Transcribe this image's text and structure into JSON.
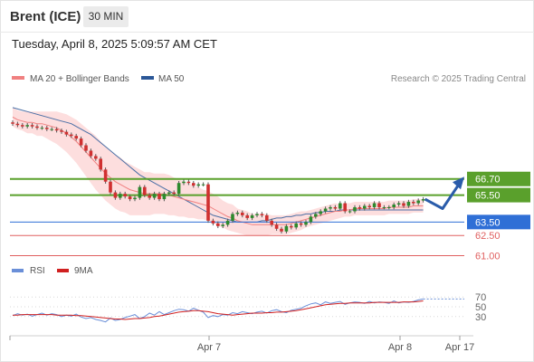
{
  "header": {
    "instrument": "Brent (ICE)",
    "timeframe": "30 MIN",
    "timestamp": "Tuesday, April 8, 2025 5:09:57 AM CET"
  },
  "colors": {
    "price_up": "#2d8a2d",
    "price_down": "#d03030",
    "ma20": "#f08080",
    "bollinger_fill": "#fcd3d3",
    "ma50": "#4a6fa5",
    "resistance": "#5aa02c",
    "pivot": "#2f6fd6",
    "support": "#e06060",
    "arrow": "#2a5caa",
    "rsi": "#6a8fd8",
    "rsi_ma": "#d02020"
  },
  "chart_data": [
    {
      "type": "candlestick",
      "legend": [
        {
          "label": "MA 20 + Bollinger Bands",
          "color": "#f08080"
        },
        {
          "label": "MA 50",
          "color": "#2b5797"
        }
      ],
      "credit": "Research © 2025 Trading Central",
      "x_ticks": [
        "Apr 7",
        "Apr 8",
        "Apr 17"
      ],
      "ylim": [
        60.5,
        73.0
      ],
      "levels": [
        {
          "value": 66.7,
          "label": "66.70",
          "role": "resistance",
          "color": "#5aa02c"
        },
        {
          "value": 65.5,
          "label": "65.50",
          "role": "resistance",
          "color": "#5aa02c"
        },
        {
          "value": 63.5,
          "label": "63.50",
          "role": "pivot",
          "color": "#2f6fd6"
        },
        {
          "value": 62.5,
          "label": "62.50",
          "role": "support",
          "color": "#e06060"
        },
        {
          "value": 61.0,
          "label": "61.00",
          "role": "support",
          "color": "#e06060"
        }
      ],
      "close": [
        70.8,
        70.7,
        70.6,
        70.7,
        70.6,
        70.5,
        70.5,
        70.4,
        70.4,
        70.3,
        70.2,
        70.0,
        69.9,
        69.7,
        69.2,
        68.8,
        68.4,
        68.2,
        67.4,
        66.5,
        65.7,
        65.3,
        65.6,
        65.4,
        65.2,
        65.3,
        66.1,
        65.5,
        65.3,
        65.6,
        65.2,
        65.6,
        65.7,
        65.6,
        66.4,
        66.5,
        66.4,
        66.2,
        66.3,
        66.3,
        63.6,
        63.4,
        63.2,
        63.3,
        63.6,
        64.1,
        64.2,
        64.0,
        63.8,
        64.0,
        64.1,
        64.0,
        63.6,
        63.3,
        63.0,
        62.8,
        63.2,
        63.1,
        63.4,
        63.3,
        63.5,
        63.9,
        64.1,
        64.3,
        64.5,
        64.6,
        64.5,
        64.9,
        64.3,
        64.3,
        64.6,
        64.5,
        64.7,
        64.6,
        64.9,
        64.6,
        64.6,
        64.6,
        64.8,
        64.9,
        64.7,
        65.0,
        64.9,
        65.1,
        65.2
      ],
      "ma20": [
        71.3,
        71.1,
        71.0,
        70.9,
        70.9,
        70.8,
        70.8,
        70.7,
        70.6,
        70.5,
        70.3,
        70.1,
        69.8,
        69.5,
        69.1,
        68.7,
        68.3,
        67.9,
        67.5,
        67.1,
        66.8,
        66.5,
        66.3,
        66.1,
        65.9,
        65.8,
        65.7,
        65.6,
        65.6,
        65.6,
        65.6,
        65.6,
        65.5,
        65.4,
        65.3,
        65.2,
        65.1,
        65.0,
        64.9,
        64.8,
        64.7,
        64.5,
        64.3,
        64.1,
        63.9,
        63.8,
        63.6,
        63.5,
        63.4,
        63.3,
        63.3,
        63.3,
        63.3,
        63.3,
        63.3,
        63.3,
        63.3,
        63.4,
        63.5,
        63.6,
        63.7,
        63.8,
        63.9,
        64.0,
        64.1,
        64.2,
        64.3,
        64.3,
        64.4,
        64.4,
        64.5,
        64.5,
        64.5,
        64.5,
        64.5,
        64.5,
        64.5,
        64.6,
        64.6,
        64.6,
        64.6,
        64.6,
        64.7,
        64.7,
        64.7
      ],
      "ma50": [
        72.0,
        71.9,
        71.8,
        71.7,
        71.6,
        71.5,
        71.4,
        71.3,
        71.2,
        71.1,
        71.0,
        70.9,
        70.8,
        70.6,
        70.4,
        70.2,
        70.0,
        69.7,
        69.4,
        69.1,
        68.8,
        68.5,
        68.2,
        67.9,
        67.6,
        67.3,
        67.0,
        66.8,
        66.6,
        66.4,
        66.2,
        66.0,
        65.8,
        65.6,
        65.4,
        65.2,
        65.0,
        64.8,
        64.6,
        64.4,
        64.2,
        64.0,
        63.9,
        63.8,
        63.7,
        63.6,
        63.5,
        63.5,
        63.5,
        63.5,
        63.5,
        63.6,
        63.6,
        63.7,
        63.8,
        63.8,
        63.9,
        63.9,
        64.0,
        64.0,
        64.1,
        64.1,
        64.2,
        64.2,
        64.3,
        64.3,
        64.3,
        64.4,
        64.4,
        64.4,
        64.4,
        64.4,
        64.4,
        64.4,
        64.4,
        64.4,
        64.4,
        64.4,
        64.4,
        64.4,
        64.4,
        64.4,
        64.4,
        64.4,
        64.4
      ],
      "bollinger_width": [
        0.7,
        0.7,
        0.7,
        0.8,
        0.8,
        0.9,
        0.9,
        1.0,
        1.1,
        1.2,
        1.3,
        1.4,
        1.5,
        1.6,
        1.7,
        1.8,
        1.9,
        2.0,
        2.0,
        2.0,
        2.0,
        2.0,
        2.0,
        1.9,
        1.9,
        1.8,
        1.7,
        1.6,
        1.6,
        1.5,
        1.5,
        1.5,
        1.5,
        1.4,
        1.4,
        1.3,
        1.3,
        1.2,
        1.2,
        1.1,
        1.1,
        1.1,
        1.1,
        1.0,
        1.0,
        1.0,
        0.9,
        0.9,
        0.9,
        0.8,
        0.8,
        0.8,
        0.8,
        0.7,
        0.7,
        0.7,
        0.7,
        0.7,
        0.7,
        0.7,
        0.6,
        0.6,
        0.6,
        0.6,
        0.6,
        0.6,
        0.6,
        0.5,
        0.5,
        0.5,
        0.5,
        0.5,
        0.5,
        0.5,
        0.5,
        0.5,
        0.5,
        0.5,
        0.5,
        0.5,
        0.5,
        0.5,
        0.5,
        0.5,
        0.5
      ],
      "projection": [
        65.2,
        64.5,
        66.6
      ]
    },
    {
      "type": "line",
      "legend": [
        {
          "label": "RSI",
          "color": "#6a8fd8"
        },
        {
          "label": "9MA",
          "color": "#d02020"
        }
      ],
      "y_ticks": [
        70,
        50,
        30
      ],
      "ylim": [
        0,
        100
      ],
      "series": [
        {
          "name": "RSI",
          "values": [
            32,
            36,
            33,
            35,
            31,
            34,
            37,
            33,
            36,
            34,
            30,
            33,
            31,
            35,
            29,
            26,
            28,
            24,
            22,
            19,
            27,
            22,
            24,
            28,
            31,
            34,
            26,
            30,
            37,
            33,
            40,
            34,
            38,
            42,
            45,
            44,
            41,
            47,
            43,
            39,
            28,
            32,
            30,
            34,
            33,
            38,
            36,
            40,
            38,
            36,
            39,
            41,
            37,
            42,
            44,
            40,
            38,
            43,
            45,
            47,
            52,
            56,
            58,
            54,
            60,
            57,
            59,
            61,
            55,
            58,
            60,
            59,
            57,
            61,
            58,
            60,
            59,
            57,
            62,
            58,
            60,
            59,
            61,
            64,
            66
          ]
        },
        {
          "name": "9MA",
          "values": [
            33,
            33,
            34,
            34,
            34,
            34,
            34,
            34,
            34,
            33,
            33,
            33,
            33,
            32,
            32,
            31,
            30,
            29,
            28,
            27,
            26,
            25,
            25,
            24,
            25,
            26,
            26,
            27,
            28,
            30,
            31,
            33,
            35,
            37,
            39,
            40,
            41,
            42,
            42,
            41,
            40,
            38,
            36,
            35,
            34,
            33,
            34,
            35,
            36,
            37,
            37,
            37,
            38,
            38,
            39,
            39,
            40,
            41,
            42,
            44,
            46,
            48,
            50,
            52,
            54,
            55,
            56,
            57,
            57,
            58,
            58,
            58,
            58,
            58,
            59,
            59,
            59,
            59,
            59,
            59,
            60,
            60,
            60,
            61,
            62
          ]
        }
      ]
    }
  ]
}
